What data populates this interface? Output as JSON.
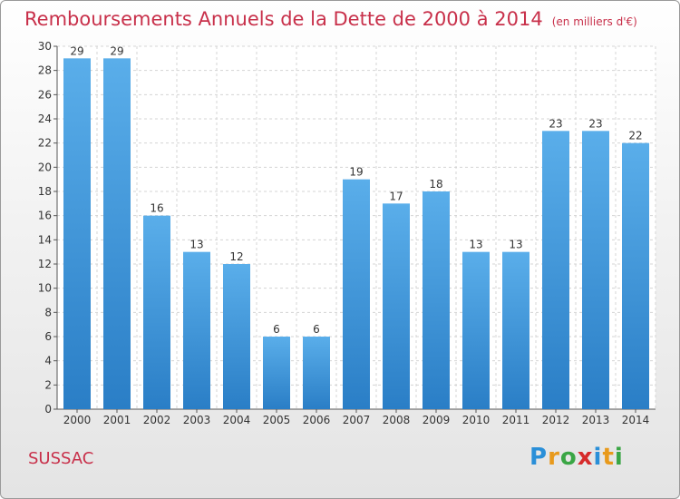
{
  "title": "Remboursements Annuels de la Dette de 2000 à 2014",
  "subtitle": "(en milliers d'€)",
  "commune": "SUSSAC",
  "logo": {
    "letters": [
      "P",
      "r",
      "o",
      "x",
      "i",
      "t",
      "i"
    ],
    "colors": [
      "#2a8fd8",
      "#e89a1c",
      "#3aa645",
      "#d62b2b",
      "#2a8fd8",
      "#e89a1c",
      "#3aa645"
    ]
  },
  "colors": {
    "bar_top": "#5aaeea",
    "bar_bottom": "#2a7ec6",
    "text": "#c8304a"
  },
  "chart_data": {
    "type": "bar",
    "categories": [
      "2000",
      "2001",
      "2002",
      "2003",
      "2004",
      "2005",
      "2006",
      "2007",
      "2008",
      "2009",
      "2010",
      "2011",
      "2012",
      "2013",
      "2014"
    ],
    "values": [
      29,
      29,
      16,
      13,
      12,
      6,
      6,
      19,
      17,
      18,
      13,
      13,
      23,
      23,
      22
    ],
    "ylim": [
      0,
      30
    ],
    "yticks": [
      0,
      2,
      4,
      6,
      8,
      10,
      12,
      14,
      16,
      18,
      20,
      22,
      24,
      26,
      28,
      30
    ],
    "grid": true,
    "data_labels": true
  }
}
